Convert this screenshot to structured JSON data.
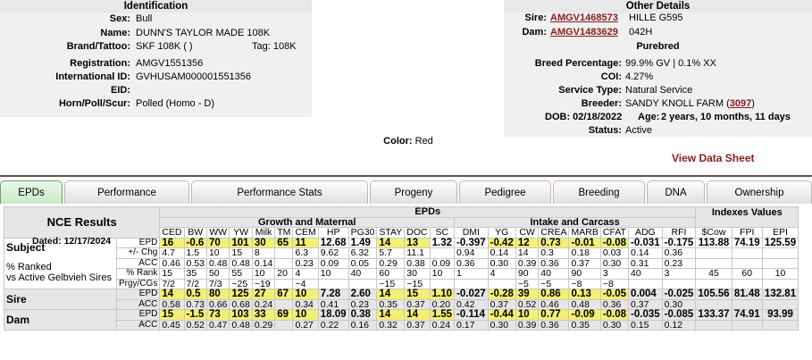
{
  "identification": {
    "header": "Identification",
    "rows": [
      {
        "label": "Sex:",
        "value": "Bull"
      },
      {
        "label": "Name:",
        "value": "DUNN'S TAYLOR MADE 108K"
      },
      {
        "label": "Brand/Tattoo:",
        "value": "SKF 108K ( )",
        "extra": "Tag: 108K"
      },
      {
        "label": "Registration:",
        "value": "AMGV1551356"
      },
      {
        "label": "International ID:",
        "value": "GVHUSAM000001551356"
      },
      {
        "label": "EID:",
        "value": ""
      },
      {
        "label": "Horn/Poll/Scur:",
        "value": "Polled (Homo - D)"
      }
    ],
    "color_label": "Color:",
    "color_value": "Red"
  },
  "other_details": {
    "header": "Other Details",
    "sire_label": "Sire:",
    "sire_id": "AMGV1468573",
    "sire_name": "HILLE G595",
    "dam_label": "Dam:",
    "dam_id": "AMGV1483629",
    "dam_name": "042H",
    "purebred": "Purebred",
    "rows": [
      {
        "label": "Breed Percentage:",
        "value": "99.9% GV | 0.1% XX"
      },
      {
        "label": "COI:",
        "value": "4.27%"
      },
      {
        "label": "Service Type:",
        "value": "Natural Service"
      }
    ],
    "breeder_label": "Breeder:",
    "breeder_value": "SANDY KNOLL FARM (",
    "breeder_link": "3097",
    "breeder_close": ")",
    "dob": "DOB: 02/18/2022",
    "age_label": "Age:",
    "age_value": "2 years, 10 months, 11 days",
    "status_label": "Status:",
    "status_value": "Active",
    "view_sheet": "View Data Sheet"
  },
  "tabs": [
    "EPDs",
    "Performance",
    "Performance Stats",
    "Progeny",
    "Pedigree",
    "Breeding",
    "DNA",
    "Ownership"
  ],
  "epd": {
    "title": "NCE Results",
    "dated": "Dated: 12/17/2024",
    "epds_header": "EPDs",
    "growth_header": "Growth and Maternal",
    "intake_header": "Intake and Carcass",
    "indexes_header": "Indexes Values",
    "columns": [
      "CED",
      "BW",
      "WW",
      "YW",
      "Milk",
      "TM",
      "CEM",
      "HP",
      "PG30",
      "STAY",
      "DOC",
      "SC",
      "DMI",
      "YG",
      "CW",
      "CREA",
      "MARB",
      "CFAT",
      "ADG",
      "RFI",
      "$Cow",
      "FPI",
      "EPI"
    ],
    "subject_label": "Subject",
    "subject_sublabels": [
      "EPD",
      "+/- Chg",
      "ACC",
      "% Rank",
      "Prgy/CGs"
    ],
    "pct_label_1": "% Ranked",
    "pct_label_2": "vs Active Gelbvieh Sires",
    "subject": {
      "epd": [
        "16",
        "-0.6",
        "70",
        "101",
        "30",
        "65",
        "11",
        "12.68",
        "1.49",
        "14",
        "13",
        "1.32",
        "-0.397",
        "-0.42",
        "12",
        "0.73",
        "-0.01",
        "-0.08",
        "-0.031",
        "-0.175",
        "113.88",
        "74.19",
        "125.59"
      ],
      "chg": [
        "4.7",
        "1.5",
        "10",
        "15",
        "8",
        "",
        "6.3",
        "9.62",
        "6.32",
        "5.7",
        "11.1",
        "",
        "0.94",
        "0.14",
        "14",
        "0.3",
        "0.18",
        "0.03",
        "0.14",
        "0.36",
        "",
        "",
        ""
      ],
      "acc": [
        "0.46",
        "0.53",
        "0.48",
        "0.48",
        "0.14",
        "",
        "0.23",
        "0.09",
        "0.05",
        "0.29",
        "0.38",
        "0.09",
        "0.36",
        "0.30",
        "0.39",
        "0.36",
        "0.37",
        "0.30",
        "0.31",
        "0.23",
        "",
        "",
        ""
      ],
      "rank": [
        "15",
        "35",
        "50",
        "55",
        "10",
        "20",
        "4",
        "10",
        "40",
        "60",
        "30",
        "10",
        "1",
        "4",
        "90",
        "40",
        "90",
        "3",
        "40",
        "3",
        "45",
        "60",
        "10"
      ],
      "prgy": [
        "7/2",
        "7/2",
        "7/3",
        "~25",
        "~19",
        "",
        "~4",
        "",
        "",
        "~15",
        "~15",
        "",
        "",
        "",
        "~5",
        "~5",
        "~8",
        "~8",
        "",
        "",
        "",
        "",
        ""
      ]
    },
    "sire": {
      "label": "Sire",
      "epd": [
        "14",
        "0.5",
        "80",
        "125",
        "27",
        "67",
        "10",
        "7.28",
        "2.60",
        "14",
        "15",
        "1.10",
        "-0.027",
        "-0.28",
        "39",
        "0.86",
        "0.13",
        "-0.05",
        "0.004",
        "-0.025",
        "105.56",
        "81.48",
        "132.81"
      ],
      "acc": [
        "0.58",
        "0.73",
        "0.66",
        "0.68",
        "0.24",
        "",
        "0.34",
        "0.41",
        "0.23",
        "0.35",
        "0.37",
        "0.20",
        "0.42",
        "0.37",
        "0.52",
        "0.46",
        "0.48",
        "0.36",
        "0.37",
        "0.30",
        "",
        "",
        ""
      ]
    },
    "dam": {
      "label": "Dam",
      "epd": [
        "15",
        "-1.5",
        "73",
        "103",
        "33",
        "69",
        "10",
        "18.09",
        "0.38",
        "14",
        "14",
        "1.55",
        "-0.114",
        "-0.44",
        "10",
        "0.77",
        "-0.09",
        "-0.08",
        "-0.035",
        "-0.085",
        "133.37",
        "74.91",
        "93.99"
      ],
      "acc": [
        "0.45",
        "0.52",
        "0.47",
        "0.48",
        "0.29",
        "",
        "0.27",
        "0.22",
        "0.16",
        "0.32",
        "0.37",
        "0.24",
        "0.17",
        "0.30",
        "0.39",
        "0.36",
        "0.35",
        "0.30",
        "0.15",
        "0.12",
        "",
        "",
        ""
      ]
    },
    "highlight": {
      "subject": [
        "16",
        "-0.6",
        "70",
        "101",
        "30",
        "65",
        "11",
        "14",
        "13",
        "-0.42",
        "12",
        "0.73",
        "-0.01",
        "-0.08"
      ],
      "sire_cols": [
        0,
        1,
        2,
        3,
        4,
        5,
        6,
        9,
        10,
        11,
        13,
        14,
        15,
        16,
        17
      ],
      "dam_cols": [
        0,
        1,
        2,
        3,
        4,
        5,
        6,
        9,
        10,
        11,
        13,
        14,
        15,
        16,
        17
      ],
      "subject_cols": [
        0,
        1,
        2,
        3,
        4,
        5,
        6,
        9,
        10,
        13,
        14,
        15,
        16,
        17
      ]
    }
  }
}
